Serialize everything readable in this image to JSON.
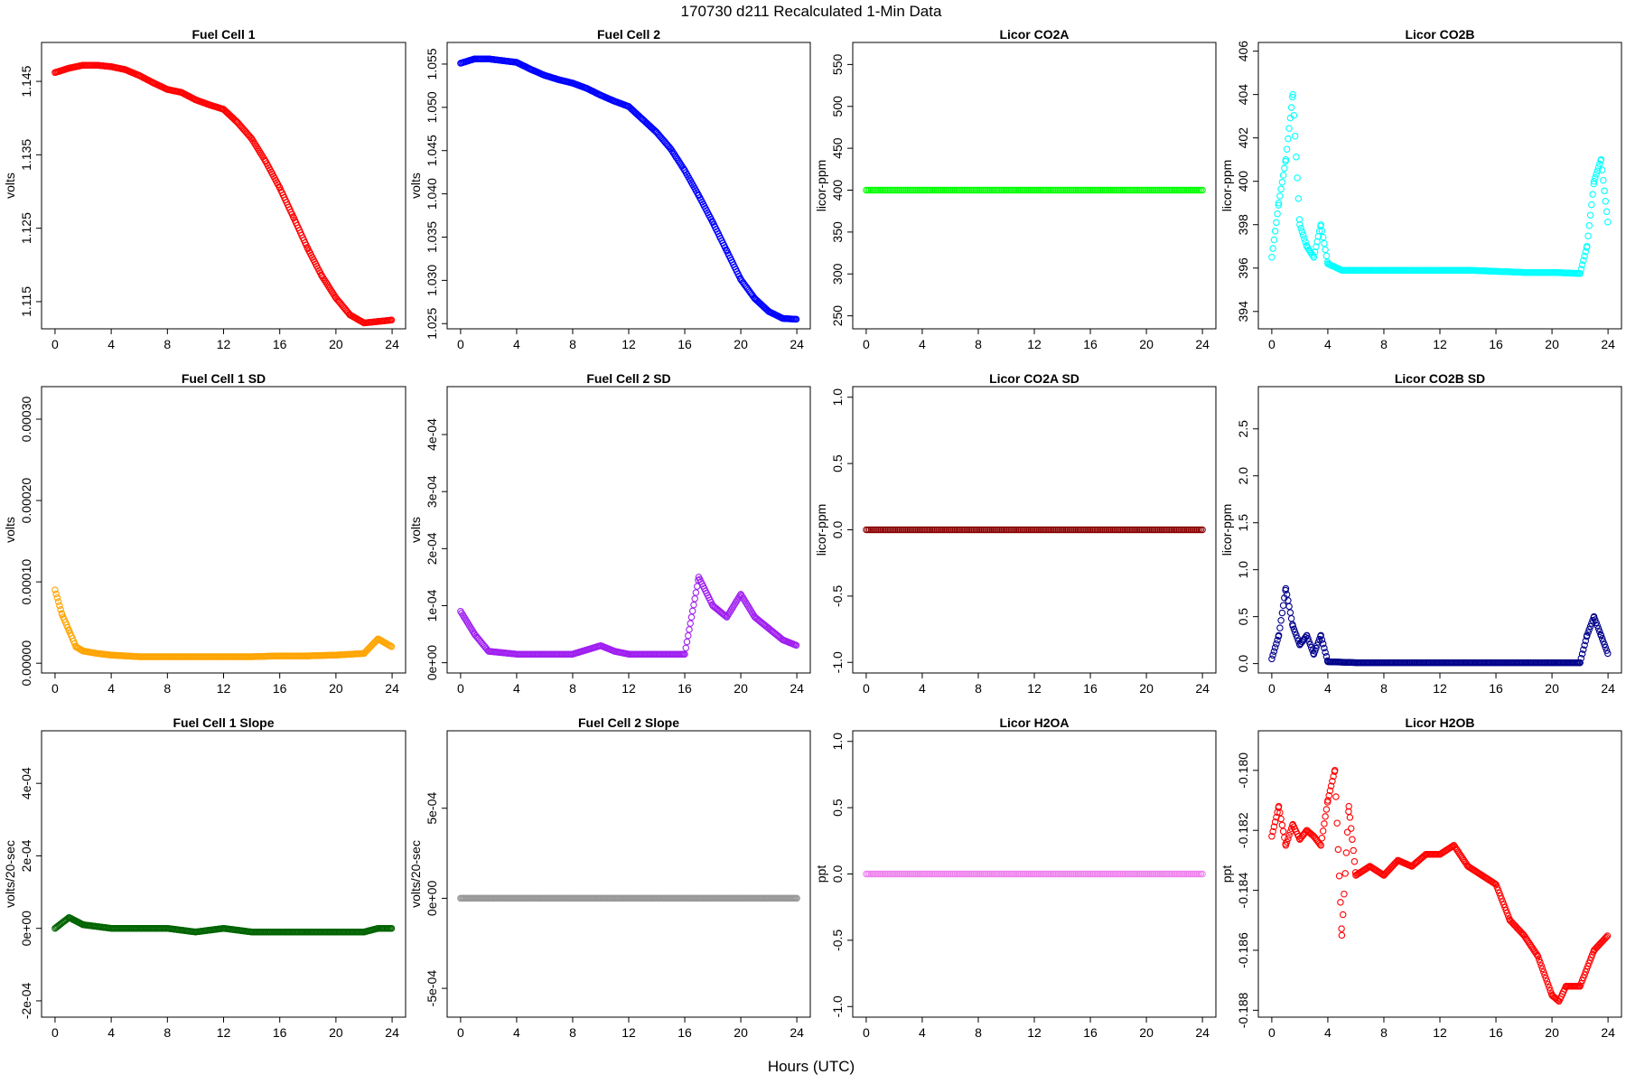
{
  "figure": {
    "suptitle": "170730   d211   Recalculated 1-Min Data",
    "xlabel": "Hours (UTC)"
  },
  "chart_data": [
    {
      "type": "scatter",
      "title": "Fuel Cell 1",
      "ylabel": "volts",
      "color": "#ff0000",
      "xlim": [
        -0.96,
        24.96
      ],
      "ylim": [
        1.1113,
        1.1503
      ],
      "yticks": [
        1.115,
        1.125,
        1.135,
        1.145
      ],
      "yticklabels": [
        "1.115",
        "1.125",
        "1.135",
        "1.145"
      ],
      "xticks": [
        0,
        4,
        8,
        12,
        16,
        20,
        24
      ],
      "series": [
        {
          "name": "Fuel Cell 1",
          "x": [
            0,
            1,
            2,
            3,
            4,
            5,
            6,
            7,
            8,
            9,
            10,
            11,
            12,
            13,
            14,
            15,
            16,
            17,
            18,
            19,
            20,
            21,
            22,
            23,
            24
          ],
          "y": [
            1.1462,
            1.1468,
            1.1472,
            1.1472,
            1.147,
            1.1466,
            1.1458,
            1.1448,
            1.1439,
            1.1435,
            1.1425,
            1.1418,
            1.1412,
            1.1394,
            1.1372,
            1.1341,
            1.1305,
            1.1264,
            1.1222,
            1.1185,
            1.1155,
            1.1132,
            1.1121,
            1.1123,
            1.1125
          ]
        }
      ]
    },
    {
      "type": "scatter",
      "title": "Fuel Cell 2",
      "ylabel": "volts",
      "color": "#0000ff",
      "xlim": [
        -0.96,
        24.96
      ],
      "ylim": [
        1.0244,
        1.0575
      ],
      "yticks": [
        1.025,
        1.03,
        1.035,
        1.04,
        1.045,
        1.05,
        1.055
      ],
      "yticklabels": [
        "1.025",
        "1.030",
        "1.035",
        "1.040",
        "1.045",
        "1.050",
        "1.055"
      ],
      "xticks": [
        0,
        4,
        8,
        12,
        16,
        20,
        24
      ],
      "series": [
        {
          "name": "Fuel Cell 2",
          "x": [
            0,
            1,
            2,
            3,
            4,
            5,
            6,
            7,
            8,
            9,
            10,
            11,
            12,
            13,
            14,
            15,
            16,
            17,
            18,
            19,
            20,
            21,
            22,
            23,
            24
          ],
          "y": [
            1.0551,
            1.0556,
            1.0556,
            1.0554,
            1.0552,
            1.0544,
            1.0537,
            1.0532,
            1.0528,
            1.0522,
            1.0514,
            1.0507,
            1.0501,
            1.0486,
            1.0471,
            1.0452,
            1.0427,
            1.0398,
            1.0367,
            1.0334,
            1.0301,
            1.0279,
            1.0264,
            1.0256,
            1.0255
          ]
        }
      ]
    },
    {
      "type": "scatter",
      "title": "Licor CO2A",
      "ylabel": "licor-ppm",
      "color": "#00ff00",
      "xlim": [
        -0.96,
        24.96
      ],
      "ylim": [
        234.5,
        576.3
      ],
      "yticks": [
        250,
        300,
        350,
        400,
        450,
        500,
        550
      ],
      "yticklabels": [
        "250",
        "300",
        "350",
        "400",
        "450",
        "500",
        "550"
      ],
      "xticks": [
        0,
        4,
        8,
        12,
        16,
        20,
        24
      ],
      "series": [
        {
          "name": "Licor CO2A",
          "x": [
            0,
            24
          ],
          "y": [
            400,
            400
          ]
        }
      ]
    },
    {
      "type": "scatter",
      "title": "Licor CO2B",
      "ylabel": "licor-ppm",
      "color": "#00ffff",
      "xlim": [
        -0.96,
        24.96
      ],
      "ylim": [
        393.2,
        406.4
      ],
      "yticks": [
        394,
        396,
        398,
        400,
        402,
        404,
        406
      ],
      "yticklabels": [
        "394",
        "396",
        "398",
        "400",
        "402",
        "404",
        "406"
      ],
      "xticks": [
        0,
        4,
        8,
        12,
        16,
        20,
        24
      ],
      "series": [
        {
          "name": "Licor CO2B",
          "x": [
            0,
            0.5,
            1,
            1.5,
            2,
            2.5,
            3,
            3.5,
            4,
            5,
            6,
            7,
            8,
            10,
            12,
            14,
            16,
            18,
            20,
            22,
            22.5,
            23,
            23.5,
            24
          ],
          "y": [
            396.5,
            399,
            401,
            404,
            398,
            397,
            396.5,
            398,
            396.2,
            395.9,
            395.9,
            395.9,
            395.9,
            395.9,
            395.9,
            395.9,
            395.85,
            395.8,
            395.8,
            395.75,
            397,
            400,
            401,
            398
          ]
        }
      ]
    },
    {
      "type": "scatter",
      "title": "Fuel Cell 1 SD",
      "ylabel": "volts",
      "color": "#ffa500",
      "xlim": [
        -0.96,
        24.96
      ],
      "ylim": [
        -1.2e-05,
        0.00034
      ],
      "yticks": [
        0,
        0.0001,
        0.0002,
        0.0003
      ],
      "yticklabels": [
        "0.00000",
        "0.00010",
        "0.00020",
        "0.00030"
      ],
      "xticks": [
        0,
        4,
        8,
        12,
        16,
        20,
        24
      ],
      "series": [
        {
          "name": "Fuel Cell 1 SD",
          "x": [
            0,
            0.5,
            1,
            1.5,
            2,
            3,
            4,
            6,
            8,
            10,
            12,
            14,
            16,
            18,
            20,
            22,
            23,
            24
          ],
          "y": [
            9e-05,
            6e-05,
            4e-05,
            2e-05,
            1.5e-05,
            1.2e-05,
            1e-05,
            8e-06,
            8e-06,
            8e-06,
            8e-06,
            8e-06,
            9e-06,
            9e-06,
            1e-05,
            1.2e-05,
            3e-05,
            2e-05
          ]
        }
      ]
    },
    {
      "type": "scatter",
      "title": "Fuel Cell 2 SD",
      "ylabel": "volts",
      "color": "#a020f0",
      "xlim": [
        -0.96,
        24.96
      ],
      "ylim": [
        -1.8e-05,
        0.000484
      ],
      "yticks": [
        0,
        0.0001,
        0.0002,
        0.0003,
        0.0004
      ],
      "yticklabels": [
        "0e+00",
        "1e-04",
        "2e-04",
        "3e-04",
        "4e-04"
      ],
      "xticks": [
        0,
        4,
        8,
        12,
        16,
        20,
        24
      ],
      "series": [
        {
          "name": "Fuel Cell 2 SD",
          "x": [
            0,
            1,
            2,
            4,
            6,
            8,
            10,
            11,
            12,
            14,
            16,
            17,
            18,
            19,
            20,
            21,
            22,
            23,
            24
          ],
          "y": [
            9e-05,
            5e-05,
            2e-05,
            1.5e-05,
            1.5e-05,
            1.5e-05,
            3e-05,
            2e-05,
            1.5e-05,
            1.5e-05,
            1.5e-05,
            0.00015,
            0.0001,
            8e-05,
            0.00012,
            8e-05,
            6e-05,
            4e-05,
            3e-05
          ]
        }
      ]
    },
    {
      "type": "scatter",
      "title": "Licor CO2A SD",
      "ylabel": "licor-ppm",
      "color": "#8b0000",
      "xlim": [
        -0.96,
        24.96
      ],
      "ylim": [
        -1.08,
        1.08
      ],
      "yticks": [
        -1,
        -0.5,
        0,
        0.5,
        1
      ],
      "yticklabels": [
        "-1.0",
        "-0.5",
        "0.0",
        "0.5",
        "1.0"
      ],
      "xticks": [
        0,
        4,
        8,
        12,
        16,
        20,
        24
      ],
      "series": [
        {
          "name": "Licor CO2A SD",
          "x": [
            0,
            24
          ],
          "y": [
            0,
            0
          ]
        }
      ]
    },
    {
      "type": "scatter",
      "title": "Licor CO2B SD",
      "ylabel": "licor-ppm",
      "color": "#00008b",
      "xlim": [
        -0.96,
        24.96
      ],
      "ylim": [
        -0.1,
        2.95
      ],
      "yticks": [
        0,
        0.5,
        1,
        1.5,
        2,
        2.5
      ],
      "yticklabels": [
        "0.0",
        "0.5",
        "1.0",
        "1.5",
        "2.0",
        "2.5"
      ],
      "xticks": [
        0,
        4,
        8,
        12,
        16,
        20,
        24
      ],
      "series": [
        {
          "name": "Licor CO2B SD",
          "x": [
            0,
            0.5,
            1,
            1.5,
            2,
            2.5,
            3,
            3.5,
            4,
            6,
            8,
            12,
            16,
            20,
            22,
            22.5,
            23,
            23.5,
            24
          ],
          "y": [
            0.05,
            0.3,
            0.8,
            0.4,
            0.2,
            0.3,
            0.1,
            0.3,
            0.02,
            0.01,
            0.01,
            0.01,
            0.01,
            0.01,
            0.01,
            0.3,
            0.5,
            0.3,
            0.1
          ]
        }
      ]
    },
    {
      "type": "scatter",
      "title": "Fuel Cell 1 Slope",
      "ylabel": "volts/20-sec",
      "color": "#006400",
      "xlim": [
        -0.96,
        24.96
      ],
      "ylim": [
        -0.000245,
        0.000545
      ],
      "yticks": [
        -0.0002,
        0,
        0.0002,
        0.0004
      ],
      "yticklabels": [
        "-2e-04",
        "0e+00",
        "2e-04",
        "4e-04"
      ],
      "xticks": [
        0,
        4,
        8,
        12,
        16,
        20,
        24
      ],
      "series": [
        {
          "name": "Fuel Cell 1 Slope",
          "x": [
            0,
            1,
            2,
            4,
            6,
            8,
            10,
            12,
            14,
            16,
            18,
            20,
            22,
            23,
            24
          ],
          "y": [
            0,
            3e-05,
            1e-05,
            0,
            0,
            0,
            -1e-05,
            0,
            -1e-05,
            -1e-05,
            -1e-05,
            -1e-05,
            -1e-05,
            0,
            0
          ]
        }
      ]
    },
    {
      "type": "scatter",
      "title": "Fuel Cell 2 Slope",
      "ylabel": "volts/20-sec",
      "color": "#999999",
      "xlim": [
        -0.96,
        24.96
      ],
      "ylim": [
        -0.00066,
        0.00093
      ],
      "yticks": [
        -0.0005,
        0,
        0.0005
      ],
      "yticklabels": [
        "-5e-04",
        "0e+00",
        "5e-04"
      ],
      "xticks": [
        0,
        4,
        8,
        12,
        16,
        20,
        24
      ],
      "series": [
        {
          "name": "Fuel Cell 2 Slope",
          "x": [
            0,
            2,
            4,
            6,
            8,
            10,
            12,
            14,
            16,
            18,
            20,
            22,
            24
          ],
          "y": [
            0,
            0,
            0,
            0,
            0,
            0,
            0,
            0,
            0,
            0,
            0,
            0,
            0
          ]
        }
      ]
    },
    {
      "type": "scatter",
      "title": "Licor H2OA",
      "ylabel": "ppt",
      "color": "#ee82ee",
      "xlim": [
        -0.96,
        24.96
      ],
      "ylim": [
        -1.08,
        1.08
      ],
      "yticks": [
        -1,
        -0.5,
        0,
        0.5,
        1
      ],
      "yticklabels": [
        "-1.0",
        "-0.5",
        "0.0",
        "0.5",
        "1.0"
      ],
      "xticks": [
        0,
        4,
        8,
        12,
        16,
        20,
        24
      ],
      "series": [
        {
          "name": "Licor H2OA",
          "x": [
            0,
            24
          ],
          "y": [
            0,
            0
          ]
        }
      ]
    },
    {
      "type": "scatter",
      "title": "Licor H2OB",
      "ylabel": "ppt",
      "color": "#ff0000",
      "xlim": [
        -0.96,
        24.96
      ],
      "ylim": [
        -0.18823,
        -0.17868
      ],
      "yticks": [
        -0.188,
        -0.186,
        -0.184,
        -0.182,
        -0.18
      ],
      "yticklabels": [
        "-0.188",
        "-0.186",
        "-0.184",
        "-0.182",
        "-0.180"
      ],
      "xticks": [
        0,
        4,
        8,
        12,
        16,
        20,
        24
      ],
      "series": [
        {
          "name": "Licor H2OB",
          "x": [
            0,
            0.5,
            1,
            1.5,
            2,
            2.5,
            3,
            3.5,
            4,
            4.5,
            5,
            5.5,
            6,
            7,
            8,
            9,
            10,
            11,
            12,
            13,
            14,
            15,
            16,
            17,
            18,
            19,
            20,
            20.5,
            21,
            22,
            23,
            24
          ],
          "y": [
            -0.1822,
            -0.1812,
            -0.1825,
            -0.1818,
            -0.1823,
            -0.182,
            -0.1822,
            -0.1825,
            -0.181,
            -0.18,
            -0.1855,
            -0.1812,
            -0.1835,
            -0.1832,
            -0.1835,
            -0.183,
            -0.1832,
            -0.1828,
            -0.1828,
            -0.1825,
            -0.1832,
            -0.1835,
            -0.1838,
            -0.185,
            -0.1855,
            -0.1862,
            -0.1875,
            -0.1877,
            -0.1872,
            -0.1872,
            -0.186,
            -0.1855
          ]
        }
      ]
    }
  ]
}
